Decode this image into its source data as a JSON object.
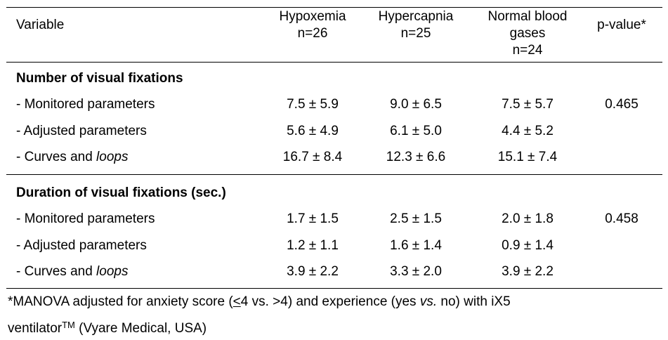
{
  "header": {
    "variable": "Variable",
    "col1_line1": "Hypoxemia",
    "col1_line2": "n=26",
    "col2_line1": "Hypercapnia",
    "col2_line2": "n=25",
    "col3_line1": "Normal blood",
    "col3_line2": "gases",
    "col3_line3": "n=24",
    "col4": "p-value*"
  },
  "sections": [
    {
      "title": "Number of visual fixations",
      "rows": [
        {
          "label": "- Monitored parameters",
          "v1": "7.5 ± 5.9",
          "v2": "9.0 ± 6.5",
          "v3": "7.5 ± 5.7",
          "p": "0.465"
        },
        {
          "label": "- Adjusted parameters",
          "v1": "5.6 ± 4.9",
          "v2": "6.1 ± 5.0",
          "v3": "4.4 ± 5.2",
          "p": ""
        },
        {
          "label_prefix": "- Curves and ",
          "label_italic": "loops",
          "v1": "16.7 ± 8.4",
          "v2": "12.3 ± 6.6",
          "v3": "15.1 ± 7.4",
          "p": ""
        }
      ]
    },
    {
      "title": "Duration of visual fixations (sec.)",
      "rows": [
        {
          "label": "- Monitored parameters",
          "v1": "1.7 ± 1.5",
          "v2": "2.5 ± 1.5",
          "v3": "2.0 ± 1.8",
          "p": "0.458"
        },
        {
          "label": "- Adjusted parameters",
          "v1": "1.2 ± 1.1",
          "v2": "1.6 ± 1.4",
          "v3": "0.9 ± 1.4",
          "p": ""
        },
        {
          "label_prefix": "- Curves and ",
          "label_italic": "loops",
          "v1": "3.9 ± 2.2",
          "v2": "3.3 ± 2.0",
          "v3": "3.9 ± 2.2",
          "p": ""
        }
      ]
    }
  ],
  "footnote": {
    "part1": "*MANOVA adjusted for anxiety score (",
    "underlined": "<",
    "part2": "4 vs. >4) and experience (yes ",
    "italic_vs": "vs.",
    "part3": " no) with iX5",
    "part4": "ventilator",
    "tm": "TM",
    "part5": " (Vyare Medical, USA)"
  }
}
